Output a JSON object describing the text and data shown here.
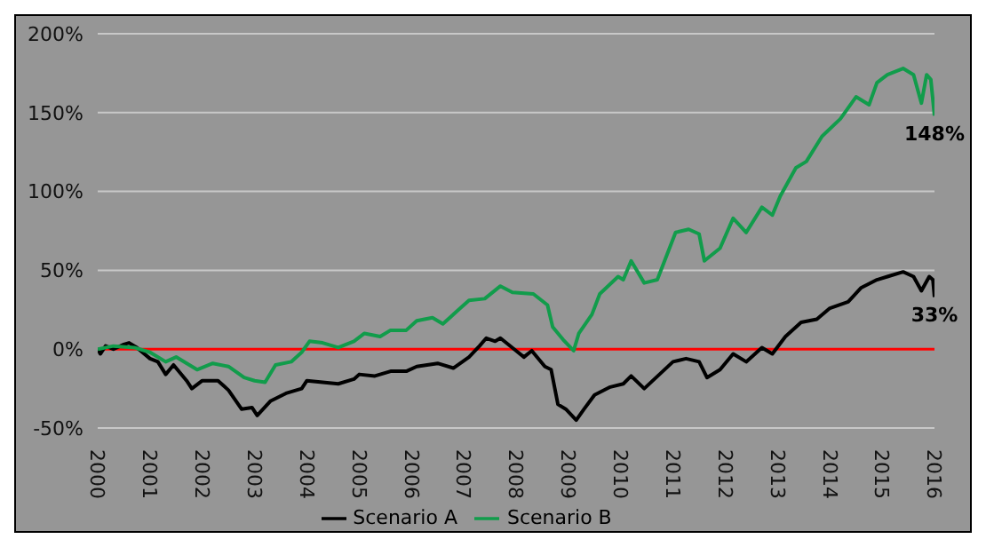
{
  "chart_data": {
    "type": "line",
    "xlim": [
      2000,
      2016
    ],
    "xticks": [
      2000,
      2001,
      2002,
      2003,
      2004,
      2005,
      2006,
      2007,
      2008,
      2009,
      2010,
      2011,
      2012,
      2013,
      2014,
      2015,
      2016
    ],
    "ylim": [
      -50,
      200
    ],
    "yticks": [
      {
        "value": -50,
        "label": "-50%"
      },
      {
        "value": 0,
        "label": "0%"
      },
      {
        "value": 50,
        "label": "50%"
      },
      {
        "value": 100,
        "label": "100%"
      },
      {
        "value": 150,
        "label": "150%"
      },
      {
        "value": 200,
        "label": "200%"
      }
    ],
    "grid": "y",
    "legend": "bottom",
    "marker": "none",
    "line_style": "solid",
    "ref_lines": [
      {
        "axis": "y",
        "value": 0,
        "color": "#ff0000"
      }
    ],
    "annotations": [
      {
        "text": "148%",
        "x": 2016,
        "y": 148
      },
      {
        "text": "33%",
        "x": 2016,
        "y": 33
      }
    ],
    "series": [
      {
        "name": "Scenario A",
        "color": "#000000",
        "x": [
          2000,
          2000.05,
          2000.15,
          2000.3,
          2000.5,
          2000.6,
          2000.75,
          2001,
          2001.15,
          2001.3,
          2001.45,
          2001.7,
          2001.8,
          2002,
          2002.3,
          2002.5,
          2002.75,
          2002.95,
          2003.05,
          2003.3,
          2003.6,
          2003.9,
          2004,
          2004.3,
          2004.6,
          2004.9,
          2005,
          2005.3,
          2005.6,
          2005.9,
          2006.1,
          2006.5,
          2006.8,
          2007.1,
          2007.3,
          2007.43,
          2007.6,
          2007.7,
          2008,
          2008.15,
          2008.3,
          2008.55,
          2008.67,
          2008.8,
          2008.95,
          2009.15,
          2009.3,
          2009.5,
          2009.8,
          2010.05,
          2010.2,
          2010.45,
          2011,
          2011.25,
          2011.5,
          2011.65,
          2011.9,
          2012.15,
          2012.4,
          2012.7,
          2012.9,
          2013.15,
          2013.45,
          2013.75,
          2014,
          2014.35,
          2014.6,
          2014.9,
          2015.1,
          2015.4,
          2015.6,
          2015.75,
          2015.9,
          2015.97,
          2016
        ],
        "values": [
          0,
          -3,
          2,
          0,
          3,
          4,
          1,
          -6,
          -8,
          -16,
          -10,
          -20,
          -25,
          -20,
          -20,
          -26,
          -38,
          -37,
          -42,
          -33,
          -28,
          -25,
          -20,
          -21,
          -22,
          -19,
          -16,
          -17,
          -14,
          -14,
          -11,
          -9,
          -12,
          -5,
          2,
          7,
          5,
          7,
          -1,
          -5,
          -1,
          -11,
          -13,
          -35,
          -38,
          -45,
          -38,
          -29,
          -24,
          -22,
          -17,
          -25,
          -8,
          -6,
          -8,
          -18,
          -13,
          -3,
          -8,
          1,
          -3,
          8,
          17,
          19,
          26,
          30,
          39,
          44,
          46,
          49,
          46,
          37,
          46,
          44,
          33
        ]
      },
      {
        "name": "Scenario B",
        "color": "#119c4b",
        "x": [
          2000,
          2000.3,
          2000.7,
          2001,
          2001.3,
          2001.5,
          2001.9,
          2002.2,
          2002.5,
          2002.8,
          2003,
          2003.2,
          2003.4,
          2003.7,
          2003.9,
          2004.05,
          2004.3,
          2004.6,
          2004.9,
          2005.1,
          2005.4,
          2005.6,
          2005.9,
          2006.1,
          2006.4,
          2006.6,
          2006.9,
          2007.1,
          2007.4,
          2007.7,
          2007.93,
          2008.33,
          2008.6,
          2008.7,
          2008.9,
          2009.1,
          2009.2,
          2009.45,
          2009.6,
          2009.95,
          2010.05,
          2010.2,
          2010.45,
          2010.7,
          2011.05,
          2011.3,
          2011.5,
          2011.6,
          2011.9,
          2012.15,
          2012.4,
          2012.7,
          2012.9,
          2013.05,
          2013.35,
          2013.55,
          2013.85,
          2014.2,
          2014.5,
          2014.75,
          2014.9,
          2015.1,
          2015.4,
          2015.6,
          2015.75,
          2015.85,
          2015.93,
          2016
        ],
        "values": [
          0,
          2,
          1,
          -2,
          -8,
          -5,
          -13,
          -9,
          -11,
          -18,
          -20,
          -21,
          -10,
          -8,
          -2,
          5,
          4,
          1,
          5,
          10,
          8,
          12,
          12,
          18,
          20,
          16,
          25,
          31,
          32,
          40,
          36,
          35,
          28,
          14,
          6,
          -1,
          10,
          22,
          35,
          46,
          44,
          56,
          42,
          44,
          74,
          76,
          73,
          56,
          64,
          83,
          74,
          90,
          85,
          97,
          115,
          119,
          135,
          146,
          160,
          155,
          169,
          174,
          178,
          174,
          156,
          174,
          171,
          148
        ]
      }
    ]
  }
}
